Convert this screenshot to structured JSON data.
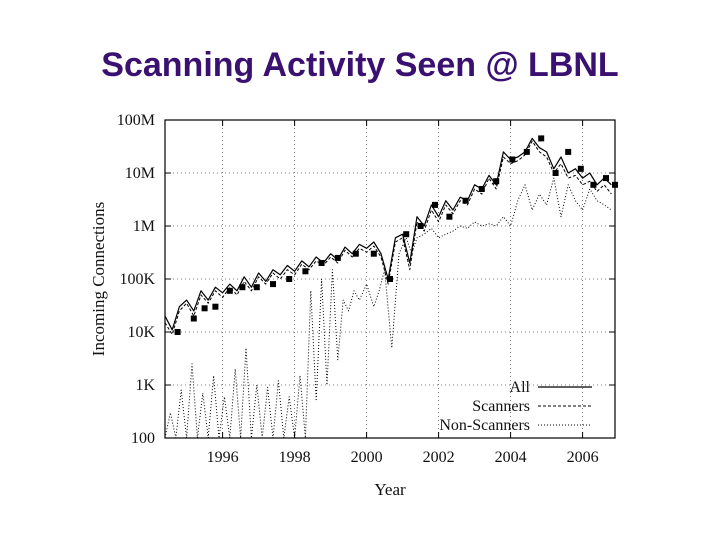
{
  "slide": {
    "title": "Scanning Activity Seen @ LBNL"
  },
  "chart_data": {
    "type": "line",
    "title": "",
    "xlabel": "Year",
    "ylabel": "Incoming Connections",
    "y_scale": "log",
    "xlim": [
      1994.4,
      2006.9
    ],
    "ylim": [
      100,
      100000000
    ],
    "x_ticks": [
      1996,
      1998,
      2000,
      2002,
      2004,
      2006
    ],
    "y_ticks": [
      {
        "value": 100,
        "label": "100"
      },
      {
        "value": 1000,
        "label": "1K"
      },
      {
        "value": 10000,
        "label": "10K"
      },
      {
        "value": 100000,
        "label": "100K"
      },
      {
        "value": 1000000,
        "label": "1M"
      },
      {
        "value": 10000000,
        "label": "10M"
      },
      {
        "value": 100000000,
        "label": "100M"
      }
    ],
    "grid": true,
    "legend_position": "bottom-right",
    "series": [
      {
        "name": "All",
        "style": "solid",
        "color": "#000000",
        "points": [
          [
            1994.4,
            20000
          ],
          [
            1994.6,
            11000
          ],
          [
            1994.8,
            30000
          ],
          [
            1995.0,
            40000
          ],
          [
            1995.2,
            25000
          ],
          [
            1995.4,
            60000
          ],
          [
            1995.6,
            40000
          ],
          [
            1995.8,
            70000
          ],
          [
            1996.0,
            55000
          ],
          [
            1996.2,
            80000
          ],
          [
            1996.4,
            60000
          ],
          [
            1996.6,
            110000
          ],
          [
            1996.8,
            70000
          ],
          [
            1997.0,
            130000
          ],
          [
            1997.2,
            90000
          ],
          [
            1997.4,
            150000
          ],
          [
            1997.6,
            120000
          ],
          [
            1997.8,
            180000
          ],
          [
            1998.0,
            140000
          ],
          [
            1998.2,
            220000
          ],
          [
            1998.4,
            170000
          ],
          [
            1998.6,
            260000
          ],
          [
            1998.8,
            200000
          ],
          [
            1999.0,
            300000
          ],
          [
            1999.2,
            230000
          ],
          [
            1999.4,
            400000
          ],
          [
            1999.6,
            300000
          ],
          [
            1999.8,
            450000
          ],
          [
            2000.0,
            380000
          ],
          [
            2000.2,
            500000
          ],
          [
            2000.4,
            300000
          ],
          [
            2000.6,
            100000
          ],
          [
            2000.8,
            600000
          ],
          [
            2001.0,
            700000
          ],
          [
            2001.2,
            200000
          ],
          [
            2001.4,
            1500000
          ],
          [
            2001.6,
            1000000
          ],
          [
            2001.8,
            2500000
          ],
          [
            2002.0,
            1500000
          ],
          [
            2002.2,
            3000000
          ],
          [
            2002.4,
            2000000
          ],
          [
            2002.6,
            3500000
          ],
          [
            2002.8,
            3000000
          ],
          [
            2003.0,
            6000000
          ],
          [
            2003.2,
            5000000
          ],
          [
            2003.4,
            9000000
          ],
          [
            2003.6,
            6000000
          ],
          [
            2003.8,
            25000000
          ],
          [
            2004.0,
            18000000
          ],
          [
            2004.2,
            20000000
          ],
          [
            2004.4,
            25000000
          ],
          [
            2004.6,
            45000000
          ],
          [
            2004.8,
            30000000
          ],
          [
            2005.0,
            25000000
          ],
          [
            2005.2,
            12000000
          ],
          [
            2005.4,
            20000000
          ],
          [
            2005.6,
            10000000
          ],
          [
            2005.8,
            12000000
          ],
          [
            2006.0,
            8000000
          ],
          [
            2006.2,
            10000000
          ],
          [
            2006.4,
            6000000
          ],
          [
            2006.6,
            8000000
          ],
          [
            2006.8,
            6000000
          ]
        ],
        "markers": [
          [
            1994.75,
            10000
          ],
          [
            1995.2,
            18000
          ],
          [
            1995.5,
            28000
          ],
          [
            1995.8,
            30000
          ],
          [
            1996.2,
            60000
          ],
          [
            1996.55,
            70000
          ],
          [
            1996.95,
            70000
          ],
          [
            1997.4,
            80000
          ],
          [
            1997.85,
            100000
          ],
          [
            1998.3,
            140000
          ],
          [
            1998.75,
            200000
          ],
          [
            1999.2,
            250000
          ],
          [
            1999.7,
            300000
          ],
          [
            2000.2,
            300000
          ],
          [
            2000.65,
            100000
          ],
          [
            2001.1,
            700000
          ],
          [
            2001.5,
            1000000
          ],
          [
            2001.9,
            2500000
          ],
          [
            2002.3,
            1500000
          ],
          [
            2002.75,
            3000000
          ],
          [
            2003.2,
            5000000
          ],
          [
            2003.6,
            7000000
          ],
          [
            2004.05,
            18000000
          ],
          [
            2004.45,
            25000000
          ],
          [
            2004.85,
            45000000
          ],
          [
            2005.25,
            10000000
          ],
          [
            2005.6,
            25000000
          ],
          [
            2005.95,
            12000000
          ],
          [
            2006.3,
            6000000
          ],
          [
            2006.65,
            8000000
          ],
          [
            2006.9,
            6000000
          ]
        ]
      },
      {
        "name": "Scanners",
        "style": "dashed",
        "color": "#000000",
        "points": [
          [
            1994.4,
            15000
          ],
          [
            1994.6,
            9000
          ],
          [
            1994.8,
            25000
          ],
          [
            1995.0,
            35000
          ],
          [
            1995.2,
            20000
          ],
          [
            1995.4,
            50000
          ],
          [
            1995.6,
            35000
          ],
          [
            1995.8,
            60000
          ],
          [
            1996.0,
            45000
          ],
          [
            1996.2,
            70000
          ],
          [
            1996.4,
            50000
          ],
          [
            1996.6,
            90000
          ],
          [
            1996.8,
            60000
          ],
          [
            1997.0,
            110000
          ],
          [
            1997.2,
            80000
          ],
          [
            1997.4,
            130000
          ],
          [
            1997.6,
            100000
          ],
          [
            1997.8,
            150000
          ],
          [
            1998.0,
            120000
          ],
          [
            1998.2,
            190000
          ],
          [
            1998.4,
            150000
          ],
          [
            1998.6,
            220000
          ],
          [
            1998.8,
            180000
          ],
          [
            1999.0,
            260000
          ],
          [
            1999.2,
            200000
          ],
          [
            1999.4,
            350000
          ],
          [
            1999.6,
            260000
          ],
          [
            1999.8,
            380000
          ],
          [
            2000.0,
            320000
          ],
          [
            2000.2,
            420000
          ],
          [
            2000.4,
            260000
          ],
          [
            2000.6,
            80000
          ],
          [
            2000.8,
            500000
          ],
          [
            2001.0,
            600000
          ],
          [
            2001.2,
            150000
          ],
          [
            2001.4,
            1200000
          ],
          [
            2001.6,
            800000
          ],
          [
            2001.8,
            2000000
          ],
          [
            2002.0,
            1200000
          ],
          [
            2002.2,
            2500000
          ],
          [
            2002.4,
            1700000
          ],
          [
            2002.6,
            3000000
          ],
          [
            2002.8,
            2500000
          ],
          [
            2003.0,
            5000000
          ],
          [
            2003.2,
            4000000
          ],
          [
            2003.4,
            8000000
          ],
          [
            2003.6,
            5000000
          ],
          [
            2003.8,
            20000000
          ],
          [
            2004.0,
            15000000
          ],
          [
            2004.2,
            17000000
          ],
          [
            2004.4,
            22000000
          ],
          [
            2004.6,
            40000000
          ],
          [
            2004.8,
            25000000
          ],
          [
            2005.0,
            20000000
          ],
          [
            2005.2,
            10000000
          ],
          [
            2005.4,
            15000000
          ],
          [
            2005.6,
            8000000
          ],
          [
            2005.8,
            9000000
          ],
          [
            2006.0,
            6000000
          ],
          [
            2006.2,
            7000000
          ],
          [
            2006.4,
            4500000
          ],
          [
            2006.6,
            6000000
          ],
          [
            2006.8,
            4000000
          ]
        ]
      },
      {
        "name": "Non-Scanners",
        "style": "dotted",
        "color": "#000000",
        "points": [
          [
            1994.4,
            100
          ],
          [
            1994.55,
            300
          ],
          [
            1994.7,
            100
          ],
          [
            1994.85,
            800
          ],
          [
            1995.0,
            100
          ],
          [
            1995.15,
            2500
          ],
          [
            1995.3,
            100
          ],
          [
            1995.45,
            700
          ],
          [
            1995.6,
            100
          ],
          [
            1995.75,
            1500
          ],
          [
            1995.9,
            100
          ],
          [
            1996.05,
            600
          ],
          [
            1996.2,
            100
          ],
          [
            1996.35,
            2000
          ],
          [
            1996.5,
            100
          ],
          [
            1996.65,
            5000
          ],
          [
            1996.8,
            100
          ],
          [
            1996.95,
            1000
          ],
          [
            1997.1,
            100
          ],
          [
            1997.25,
            900
          ],
          [
            1997.4,
            100
          ],
          [
            1997.55,
            1200
          ],
          [
            1997.7,
            100
          ],
          [
            1997.85,
            600
          ],
          [
            1998.0,
            100
          ],
          [
            1998.15,
            1500
          ],
          [
            1998.3,
            100
          ],
          [
            1998.45,
            60000
          ],
          [
            1998.6,
            500
          ],
          [
            1998.75,
            100000
          ],
          [
            1998.9,
            1000
          ],
          [
            1999.05,
            150000
          ],
          [
            1999.2,
            3000
          ],
          [
            1999.35,
            40000
          ],
          [
            1999.5,
            25000
          ],
          [
            1999.65,
            60000
          ],
          [
            1999.8,
            40000
          ],
          [
            2000.0,
            80000
          ],
          [
            2000.2,
            30000
          ],
          [
            2000.35,
            60000
          ],
          [
            2000.5,
            150000
          ],
          [
            2000.7,
            5000
          ],
          [
            2000.9,
            300000
          ],
          [
            2001.1,
            600000
          ],
          [
            2001.25,
            300000
          ],
          [
            2001.4,
            600000
          ],
          [
            2001.6,
            700000
          ],
          [
            2001.8,
            900000
          ],
          [
            2002.0,
            600000
          ],
          [
            2002.2,
            700000
          ],
          [
            2002.4,
            800000
          ],
          [
            2002.6,
            1000000
          ],
          [
            2002.8,
            900000
          ],
          [
            2003.0,
            1200000
          ],
          [
            2003.2,
            1000000
          ],
          [
            2003.4,
            1100000
          ],
          [
            2003.6,
            1000000
          ],
          [
            2003.8,
            1500000
          ],
          [
            2004.0,
            1000000
          ],
          [
            2004.2,
            3000000
          ],
          [
            2004.4,
            6000000
          ],
          [
            2004.6,
            2000000
          ],
          [
            2004.8,
            4000000
          ],
          [
            2005.0,
            2500000
          ],
          [
            2005.2,
            8000000
          ],
          [
            2005.4,
            1500000
          ],
          [
            2005.6,
            6000000
          ],
          [
            2005.8,
            3000000
          ],
          [
            2006.0,
            2000000
          ],
          [
            2006.2,
            5000000
          ],
          [
            2006.4,
            3000000
          ],
          [
            2006.6,
            2500000
          ],
          [
            2006.8,
            2000000
          ]
        ]
      }
    ]
  }
}
